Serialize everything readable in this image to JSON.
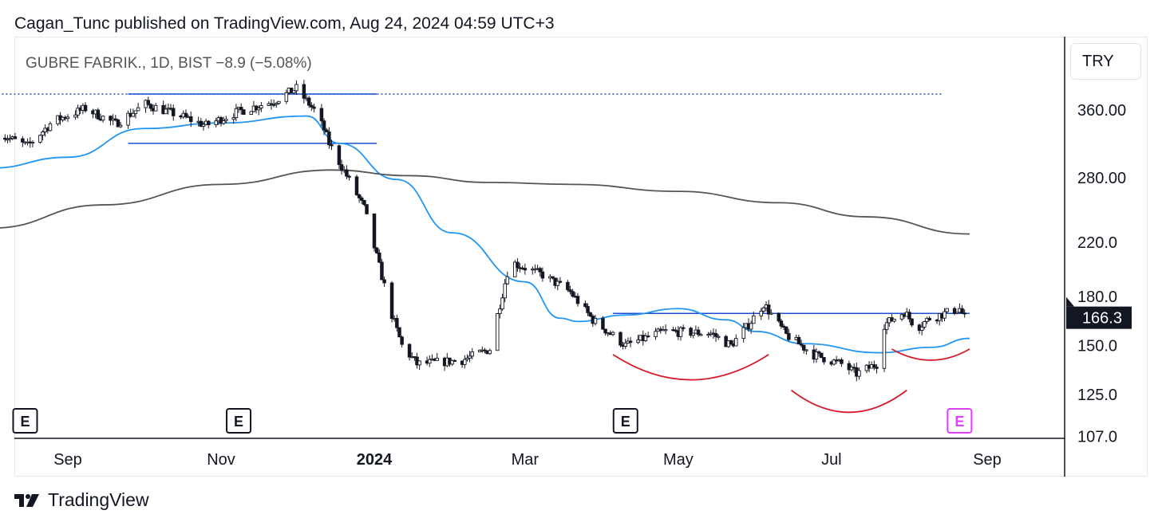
{
  "header": {
    "publish_line": "Cagan_Tunc published on TradingView.com, Aug 24, 2024 04:59 UTC+3"
  },
  "legend": {
    "symbol_line": "GUBRE FABRIK., 1D, BIST  −8.9 (−5.08%)"
  },
  "currency_button": {
    "label": "TRY"
  },
  "footer": {
    "brand": "TradingView",
    "logo_icon": "tradingview-logo-icon"
  },
  "colors": {
    "sma50": "#2196f3",
    "sma200": "#555555",
    "resistance": "#1e4fd1",
    "cup": "#d81b2c",
    "candle": "#131722",
    "earnings_last": "#e040fb"
  },
  "chart_data": {
    "type": "candlestick",
    "title": "GUBRE FABRIK., 1D, BIST",
    "change": "−8.9 (−5.08%)",
    "last_price": {
      "value": 166.3,
      "label": "166.3"
    },
    "y_scale": "log",
    "ylim": [
      107,
      420
    ],
    "x_axis": {
      "labels": [
        {
          "text": "Sep",
          "date": "2023-09-01",
          "bold": false
        },
        {
          "text": "Nov",
          "date": "2023-11-01",
          "bold": false
        },
        {
          "text": "2024",
          "date": "2024-01-01",
          "bold": true
        },
        {
          "text": "Mar",
          "date": "2024-03-01",
          "bold": false
        },
        {
          "text": "May",
          "date": "2024-05-01",
          "bold": false
        },
        {
          "text": "Jul",
          "date": "2024-07-01",
          "bold": false
        },
        {
          "text": "Sep",
          "date": "2024-09-01",
          "bold": false
        }
      ]
    },
    "y_axis": {
      "ticks": [
        {
          "value": 360,
          "label": "360.00"
        },
        {
          "value": 280,
          "label": "280.00"
        },
        {
          "value": 220,
          "label": "220.0"
        },
        {
          "value": 180,
          "label": "180.0"
        },
        {
          "value": 150,
          "label": "150.0"
        },
        {
          "value": 125,
          "label": "125.0"
        },
        {
          "value": 107,
          "label": "107.0"
        }
      ]
    },
    "price_path": [
      [
        "2023-08-04",
        330
      ],
      [
        "2023-08-16",
        315
      ],
      [
        "2023-08-26",
        345
      ],
      [
        "2023-09-08",
        362
      ],
      [
        "2023-09-20",
        342
      ],
      [
        "2023-10-02",
        368
      ],
      [
        "2023-10-16",
        352
      ],
      [
        "2023-10-26",
        340
      ],
      [
        "2023-11-08",
        358
      ],
      [
        "2023-11-22",
        372
      ],
      [
        "2023-12-01",
        390
      ],
      [
        "2023-12-08",
        360
      ],
      [
        "2023-12-12",
        335
      ],
      [
        "2023-12-14",
        318
      ],
      [
        "2023-12-28",
        250
      ],
      [
        "2024-01-08",
        168
      ],
      [
        "2024-01-12",
        150
      ],
      [
        "2024-01-18",
        140
      ],
      [
        "2024-02-05",
        142
      ],
      [
        "2024-02-16",
        148
      ],
      [
        "2024-02-19",
        168
      ],
      [
        "2024-02-24",
        205
      ],
      [
        "2024-03-08",
        195
      ],
      [
        "2024-03-19",
        183
      ],
      [
        "2024-03-28",
        165
      ],
      [
        "2024-04-10",
        150
      ],
      [
        "2024-04-25",
        158
      ],
      [
        "2024-05-14",
        157
      ],
      [
        "2024-05-22",
        150
      ],
      [
        "2024-05-29",
        162
      ],
      [
        "2024-06-04",
        175
      ],
      [
        "2024-06-13",
        156
      ],
      [
        "2024-06-24",
        145
      ],
      [
        "2024-07-05",
        140
      ],
      [
        "2024-07-11",
        135
      ],
      [
        "2024-07-19",
        140
      ],
      [
        "2024-07-22",
        162
      ],
      [
        "2024-07-30",
        170
      ],
      [
        "2024-08-04",
        160
      ],
      [
        "2024-08-09",
        166
      ],
      [
        "2024-08-21",
        172
      ],
      [
        "2024-08-23",
        166.3
      ]
    ],
    "series": [
      {
        "name": "SMA 50",
        "points": [
          [
            "2023-08-01",
            290
          ],
          [
            "2023-09-01",
            302
          ],
          [
            "2023-10-01",
            336
          ],
          [
            "2023-11-01",
            343
          ],
          [
            "2023-12-05",
            352
          ],
          [
            "2023-12-18",
            318
          ],
          [
            "2024-01-10",
            278
          ],
          [
            "2024-02-01",
            228
          ],
          [
            "2024-03-01",
            190
          ],
          [
            "2024-03-15",
            166
          ],
          [
            "2024-03-22",
            164
          ],
          [
            "2024-04-10",
            168
          ],
          [
            "2024-05-01",
            172
          ],
          [
            "2024-05-20",
            165
          ],
          [
            "2024-06-01",
            158
          ],
          [
            "2024-06-20",
            151
          ],
          [
            "2024-07-20",
            146
          ],
          [
            "2024-08-10",
            149
          ],
          [
            "2024-08-25",
            154
          ]
        ]
      },
      {
        "name": "SMA 200",
        "points": [
          [
            "2023-08-01",
            232
          ],
          [
            "2023-09-15",
            253
          ],
          [
            "2023-11-01",
            273
          ],
          [
            "2023-12-15",
            288
          ],
          [
            "2024-01-15",
            282
          ],
          [
            "2024-02-15",
            275
          ],
          [
            "2024-03-20",
            273
          ],
          [
            "2024-05-01",
            266
          ],
          [
            "2024-06-10",
            255
          ],
          [
            "2024-07-15",
            242
          ],
          [
            "2024-08-25",
            227
          ]
        ]
      }
    ],
    "lines": [
      {
        "kind": "dotted",
        "x1": "2023-08-01",
        "x2": "2024-08-14",
        "y": 382
      },
      {
        "kind": "solid",
        "x1": "2023-09-25",
        "x2": "2024-01-02",
        "y": 382
      },
      {
        "kind": "solid",
        "x1": "2023-09-25",
        "x2": "2024-01-02",
        "y": 318
      },
      {
        "kind": "solid",
        "x1": "2024-04-05",
        "x2": "2024-08-25",
        "y": 169
      }
    ],
    "cups": [
      {
        "x1": "2024-04-05",
        "x2": "2024-06-06",
        "top": 145,
        "bottom": 132
      },
      {
        "x1": "2024-06-15",
        "x2": "2024-07-31",
        "top": 127,
        "bottom": 117
      },
      {
        "x1": "2024-07-25",
        "x2": "2024-08-25",
        "top": 148,
        "bottom": 142
      }
    ],
    "earnings": [
      {
        "label": "E",
        "date": "2023-08-15",
        "last": false
      },
      {
        "label": "E",
        "date": "2023-11-08",
        "last": false
      },
      {
        "label": "E",
        "date": "2024-04-10",
        "last": false
      },
      {
        "label": "E",
        "date": "2024-08-21",
        "last": true
      }
    ]
  }
}
